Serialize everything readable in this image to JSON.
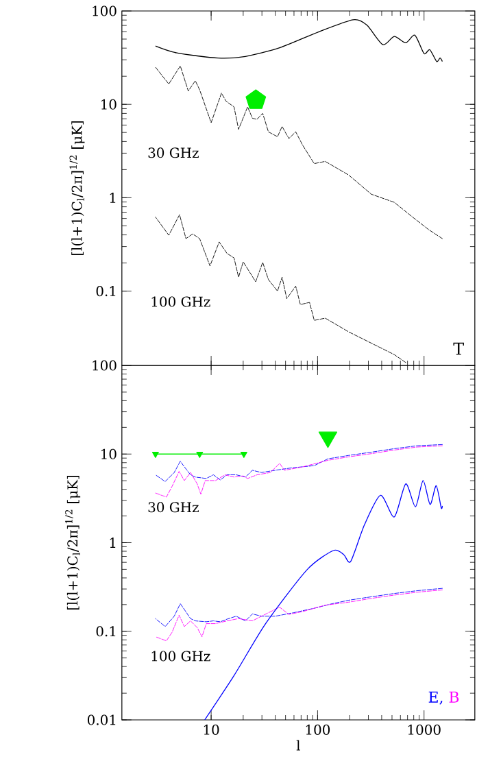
{
  "chart_data": [
    {
      "type": "line",
      "ylabel": "[l(l+1)C$_{l}$/2π]$^{1/2}$ [μK]",
      "log": "xy",
      "xlim": [
        1.45,
        3000
      ],
      "ylim": [
        0.016,
        100
      ],
      "xticks": [
        10,
        100,
        1000
      ],
      "yticks": [
        0.1,
        1,
        10,
        100
      ],
      "tick_labels": "y",
      "annotations": [
        "30 GHz",
        "100 GHz",
        "T"
      ],
      "series": [
        {
          "color": "#000000",
          "line_style": "solid",
          "x": [
            3,
            4.76,
            11.6,
            21,
            44,
            102,
            215,
            290,
            410,
            525,
            673,
            820,
            1000,
            1132,
            1313,
            1413,
            1486
          ],
          "values": [
            42.2,
            35.6,
            31.3,
            32.6,
            40.4,
            59.7,
            80.4,
            70.6,
            43.6,
            53.4,
            45.6,
            55,
            35,
            38.5,
            28.8,
            31.3,
            28.8
          ]
        },
        {
          "color": "#000000",
          "line_style": "dashed",
          "x": [
            3,
            4,
            5.13,
            6.1,
            7.1,
            7.8,
            10,
            12.5,
            13.8,
            16.4,
            18.1,
            22,
            24.4,
            26.9,
            30.5,
            34.5,
            42,
            46.4,
            53.7,
            62.3,
            72.6,
            93,
            118,
            152,
            196,
            320,
            525,
            780,
            1104,
            1486
          ],
          "values": [
            25,
            16.5,
            25.8,
            13.9,
            17.9,
            14.3,
            6.36,
            13.2,
            10.8,
            9.4,
            5.4,
            9.4,
            7.1,
            6.9,
            8,
            5.08,
            4.5,
            5.8,
            4.3,
            5.08,
            3.63,
            2.32,
            2.45,
            2.07,
            1.75,
            1.09,
            0.893,
            0.621,
            0.456,
            0.365
          ]
        },
        {
          "color": "#000000",
          "line_style": "dashed",
          "x": [
            3,
            4,
            5.05,
            5.8,
            6.7,
            7.8,
            9.75,
            11.9,
            14.1,
            16.4,
            18.1,
            20,
            26.2,
            30.5,
            34.5,
            42,
            46.4,
            51.3,
            62.3,
            68.9,
            84,
            93,
            118,
            152,
            196,
            320,
            525,
            673
          ],
          "values": [
            0.621,
            0.397,
            0.658,
            0.365,
            0.41,
            0.365,
            0.186,
            0.336,
            0.253,
            0.227,
            0.141,
            0.206,
            0.126,
            0.203,
            0.133,
            0.1,
            0.141,
            0.083,
            0.113,
            0.0718,
            0.0757,
            0.0486,
            0.0513,
            0.0434,
            0.0366,
            0.0277,
            0.0209,
            0.0172
          ]
        },
        {
          "type": "scatter",
          "color": "#00ee00",
          "x": [
            26.3
          ],
          "values": [
            11.1
          ]
        }
      ]
    },
    {
      "type": "line",
      "xlabel": "l",
      "ylabel": "[l(l+1)C$_{l}$/2π]$^{1/2}$ [μK]",
      "log": "xy",
      "xlim": [
        1.45,
        3000
      ],
      "ylim": [
        0.01,
        100
      ],
      "xticks": [
        10,
        100,
        1000
      ],
      "yticks": [
        0.01,
        0.1,
        1,
        10,
        100
      ],
      "legend": "bottom right",
      "annotations": [
        "30 GHz",
        "100 GHz"
      ],
      "series": [
        {
          "name": "E,",
          "color": "#0000ff",
          "line_style": "dashed",
          "x": [
            3,
            3.7,
            4.5,
            5.13,
            5.5,
            6.4,
            7.1,
            9,
            10.5,
            12.2,
            14.1,
            17.2,
            21,
            24.4,
            29.7,
            40,
            56.6,
            93,
            125,
            196,
            320,
            525,
            860,
            1486
          ],
          "values": [
            5.83,
            4.89,
            6.19,
            8.3,
            7.4,
            5.83,
            5.5,
            5.3,
            5.83,
            5.1,
            5.83,
            5.83,
            5.5,
            6.56,
            6.19,
            6.56,
            6.97,
            7.4,
            8.83,
            9.65,
            10.5,
            11.5,
            12.4,
            12.8
          ]
        },
        {
          "name": "B",
          "color": "#ff00ff",
          "line_style": "dashed",
          "x": [
            3,
            3.8,
            4.3,
            5,
            5.6,
            6.4,
            7.4,
            8,
            8.8,
            11,
            13.5,
            16.4,
            20,
            22,
            27,
            36,
            44,
            48.8,
            72.6,
            125,
            196,
            320,
            525,
            860,
            1486
          ],
          "values": [
            3.63,
            3.27,
            4.33,
            6.37,
            5.02,
            6.19,
            4.6,
            3.52,
            5.02,
            5.02,
            5.83,
            5.5,
            5.66,
            5.3,
            5.83,
            6.19,
            7.85,
            6.56,
            7.17,
            8.5,
            9.3,
            10.1,
            11.1,
            12.0,
            12.4
          ]
        },
        {
          "color": "#0000ff",
          "line_style": "dashed",
          "x": [
            3,
            3.7,
            4.5,
            5.13,
            5.5,
            6.4,
            7.1,
            9,
            10.5,
            12.2,
            14.1,
            17.2,
            21,
            24.4,
            29.7,
            40,
            59.5,
            93,
            138,
            196,
            320,
            525,
            860,
            1486
          ],
          "values": [
            0.139,
            0.113,
            0.148,
            0.205,
            0.182,
            0.139,
            0.131,
            0.128,
            0.131,
            0.128,
            0.137,
            0.148,
            0.131,
            0.157,
            0.148,
            0.148,
            0.162,
            0.182,
            0.205,
            0.224,
            0.245,
            0.267,
            0.287,
            0.305
          ]
        },
        {
          "color": "#ff00ff",
          "line_style": "dashed",
          "x": [
            3,
            3.8,
            4.3,
            5,
            5.6,
            6.4,
            7.4,
            8.2,
            9,
            11,
            14.1,
            18.1,
            24.4,
            29.7,
            44,
            53.7,
            72.6,
            118,
            196,
            320,
            525,
            860,
            1486
          ],
          "values": [
            0.0867,
            0.078,
            0.0977,
            0.152,
            0.113,
            0.131,
            0.11,
            0.0867,
            0.122,
            0.122,
            0.131,
            0.139,
            0.131,
            0.148,
            0.187,
            0.155,
            0.167,
            0.197,
            0.213,
            0.235,
            0.256,
            0.276,
            0.293
          ]
        },
        {
          "color": "#0000ff",
          "line_style": "solid",
          "x": [
            8.7,
            16.4,
            32.8,
            80,
            140.8,
            176,
            204.6,
            275,
            390,
            525,
            673,
            830,
            980,
            1140,
            1300,
            1450,
            1486
          ],
          "values": [
            0.01,
            0.0316,
            0.124,
            0.498,
            0.815,
            0.733,
            0.614,
            1.58,
            3.42,
            1.95,
            4.6,
            2.54,
            5.02,
            2.7,
            4.39,
            2.47,
            2.6
          ]
        },
        {
          "color": "#00ee00",
          "line_style": "solid",
          "marker": "triangle",
          "x": [
            3,
            7.8,
            20.3
          ],
          "values": [
            10,
            10,
            10
          ]
        },
        {
          "type": "scatter",
          "color": "#00ee00",
          "marker": "triangle",
          "x": [
            125
          ],
          "values": [
            15.5
          ]
        }
      ]
    }
  ]
}
